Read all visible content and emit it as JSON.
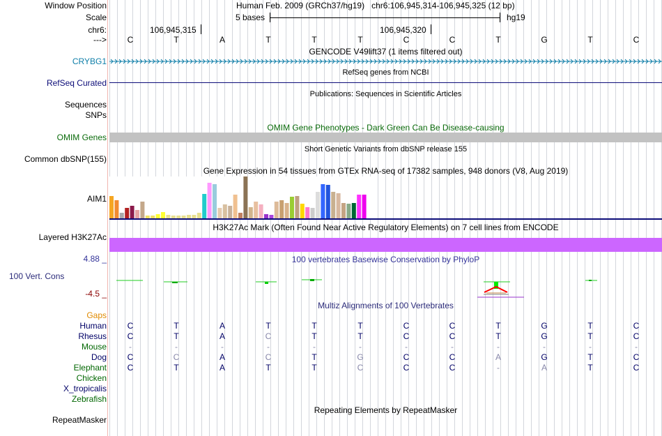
{
  "header": {
    "window_position_label": "Window Position",
    "window_position_value": "Human Feb. 2009 (GRCh37/hg19)   chr6:106,945,314-106,945,325 (12 bp)",
    "scale_label": "Scale",
    "scale_value": "5 bases",
    "scale_assembly": "hg19",
    "chrom_label": "chr6:",
    "pos_left": "106,945,315",
    "pos_right": "106,945,320",
    "strand_label": "--->",
    "bases": [
      "C",
      "T",
      "A",
      "T",
      "T",
      "T",
      "C",
      "C",
      "T",
      "G",
      "T",
      "C"
    ]
  },
  "tracks": {
    "gencode": {
      "title": "GENCODE V49lift37 (1 items filtered out)",
      "gene_label": "CRYBG1"
    },
    "refseq": {
      "title": "RefSeq genes from NCBI",
      "label": "RefSeq Curated"
    },
    "publications": {
      "title": "Publications: Sequences in Scientific Articles",
      "label": "Sequences"
    },
    "snps_label": "SNPs",
    "omim": {
      "title": "OMIM Gene Phenotypes - Dark Green Can Be Disease-causing",
      "label": "OMIM Genes"
    },
    "dbsnp": {
      "title": "Short Genetic Variants from dbSNP release 155",
      "label": "Common dbSNP(155)"
    },
    "gtex": {
      "title": "Gene Expression in 54 tissues from GTEx RNA-seq of 17382 samples, 948 donors (V8, Aug 2019)",
      "label": "AIM1",
      "bars": [
        {
          "value": 32,
          "color": "#f5a623"
        },
        {
          "value": 26,
          "color": "#f28b30"
        },
        {
          "value": 8,
          "color": "#aaaaaa"
        },
        {
          "value": 15,
          "color": "#b22222"
        },
        {
          "value": 18,
          "color": "#8b1a4a"
        },
        {
          "value": 12,
          "color": "#e6a3a3"
        },
        {
          "value": 24,
          "color": "#c4a88a"
        },
        {
          "value": 4,
          "color": "#f0e060"
        },
        {
          "value": 4,
          "color": "#f0e060"
        },
        {
          "value": 6,
          "color": "#ffff33"
        },
        {
          "value": 9,
          "color": "#ffff33"
        },
        {
          "value": 5,
          "color": "#e8e090"
        },
        {
          "value": 4,
          "color": "#e8e090"
        },
        {
          "value": 4,
          "color": "#e8e090"
        },
        {
          "value": 4,
          "color": "#e8e090"
        },
        {
          "value": 5,
          "color": "#e8e090"
        },
        {
          "value": 5,
          "color": "#e8e090"
        },
        {
          "value": 8,
          "color": "#e8e090"
        },
        {
          "value": 35,
          "color": "#22cccc"
        },
        {
          "value": 51,
          "color": "#ff99ff"
        },
        {
          "value": 49,
          "color": "#99ccdd"
        },
        {
          "value": 15,
          "color": "#e5cbb0"
        },
        {
          "value": 20,
          "color": "#d8c0a0"
        },
        {
          "value": 18,
          "color": "#c9b29a"
        },
        {
          "value": 34,
          "color": "#f0c090"
        },
        {
          "value": 8,
          "color": "#c08060"
        },
        {
          "value": 60,
          "color": "#8b7355"
        },
        {
          "value": 16,
          "color": "#d2b48c"
        },
        {
          "value": 24,
          "color": "#e8c0a0"
        },
        {
          "value": 20,
          "color": "#f5b0c0"
        },
        {
          "value": 6,
          "color": "#9933cc"
        },
        {
          "value": 5,
          "color": "#aa44dd"
        },
        {
          "value": 24,
          "color": "#ddbb99"
        },
        {
          "value": 26,
          "color": "#c8a070"
        },
        {
          "value": 22,
          "color": "#d9b38c"
        },
        {
          "value": 31,
          "color": "#9acd32"
        },
        {
          "value": 32,
          "color": "#c0a080"
        },
        {
          "value": 21,
          "color": "#ffd700"
        },
        {
          "value": 16,
          "color": "#ff77cc"
        },
        {
          "value": 15,
          "color": "#cccccc"
        },
        {
          "value": 38,
          "color": "#dddddd"
        },
        {
          "value": 49,
          "color": "#3366ff"
        },
        {
          "value": 48,
          "color": "#2255dd"
        },
        {
          "value": 38,
          "color": "#c8b090"
        },
        {
          "value": 36,
          "color": "#d8b8a0"
        },
        {
          "value": 22,
          "color": "#c4a484"
        },
        {
          "value": 21,
          "color": "#88aa88"
        },
        {
          "value": 22,
          "color": "#006633"
        },
        {
          "value": 34,
          "color": "#ff33ff"
        },
        {
          "value": 34,
          "color": "#ee00ee"
        }
      ]
    },
    "h3k27ac": {
      "title": "H3K27Ac Mark (Often Found Near Active Regulatory Elements) on 7 cell lines from ENCODE",
      "label": "Layered H3K27Ac",
      "color": "#cc66ff"
    },
    "phylop": {
      "title": "100 vertebrates Basewise Conservation by PhyloP",
      "label": "100 Vert. Cons",
      "max": "4.88 _",
      "min": "-4.5 _"
    },
    "multiz": {
      "title": "Multiz Alignments of 100 Vertebrates",
      "gaps_label": "Gaps",
      "species": [
        {
          "name": "Human",
          "color": "#000066",
          "bases": [
            "C",
            "T",
            "A",
            "T",
            "T",
            "T",
            "C",
            "C",
            "T",
            "G",
            "T",
            "C"
          ],
          "faint": []
        },
        {
          "name": "Rhesus",
          "color": "#000066",
          "bases": [
            "C",
            "T",
            "A",
            "C",
            "T",
            "T",
            "C",
            "C",
            "T",
            "G",
            "T",
            "C"
          ],
          "faint": [
            3
          ]
        },
        {
          "name": "Mouse",
          "color": "#006600",
          "bases": [
            "-",
            "-",
            "-",
            "-",
            "-",
            "-",
            "-",
            "-",
            "-",
            "-",
            "-",
            "-"
          ],
          "faint": [
            0,
            1,
            2,
            3,
            4,
            5,
            6,
            7,
            8,
            9,
            10,
            11
          ]
        },
        {
          "name": "Dog",
          "color": "#000066",
          "bases": [
            "C",
            "C",
            "A",
            "C",
            "T",
            "G",
            "C",
            "C",
            "A",
            "G",
            "T",
            "C"
          ],
          "faint": [
            1,
            3,
            5,
            8
          ]
        },
        {
          "name": "Elephant",
          "color": "#006600",
          "bases": [
            "C",
            "T",
            "A",
            "T",
            "T",
            "C",
            "C",
            "C",
            "-",
            "A",
            "T",
            "C"
          ],
          "faint": [
            5,
            8,
            9
          ]
        },
        {
          "name": "Chicken",
          "color": "#006600",
          "bases": [],
          "faint": []
        },
        {
          "name": "X_tropicalis",
          "color": "#000066",
          "bases": [],
          "faint": []
        },
        {
          "name": "Zebrafish",
          "color": "#006600",
          "bases": [],
          "faint": []
        }
      ]
    },
    "repeatmasker": {
      "title": "Repeating Elements by RepeatMasker",
      "label": "RepeatMasker"
    }
  },
  "colors": {
    "gencode": "#0e7ea8",
    "refseq": "#0c0c78",
    "omim": "#0b6b0b",
    "omim_bar": "#c2c2c2",
    "phylop": "#2b2b7a",
    "phylop_max": "#333399",
    "phylop_min": "#8b0000",
    "gaps": "#e08a00"
  }
}
